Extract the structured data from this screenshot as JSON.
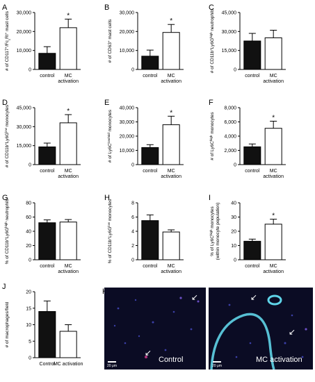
{
  "chart_data": [
    {
      "letter": "A",
      "type": "bar",
      "ylabel": [
        "# of CD117",
        "+",
        "/Fc",
        "ε",
        "RI",
        "+",
        " mast cells"
      ],
      "categories": [
        "control",
        "MC activation"
      ],
      "values": [
        8500,
        22000
      ],
      "errors": [
        3500,
        4500
      ],
      "ylim": [
        0,
        30000
      ],
      "yticks": [
        0,
        10000,
        20000,
        30000
      ],
      "yticklabels": [
        "0",
        "10,000",
        "20,000",
        "30,000"
      ],
      "significance": "*"
    },
    {
      "letter": "B",
      "type": "bar",
      "ylabel": [
        "# of CD63",
        "+",
        " mast cells"
      ],
      "categories": [
        "control",
        "MC activation"
      ],
      "values": [
        7000,
        19500
      ],
      "errors": [
        3200,
        4200
      ],
      "ylim": [
        0,
        30000
      ],
      "yticks": [
        0,
        10000,
        20000,
        30000
      ],
      "yticklabels": [
        "0",
        "10,000",
        "20,000",
        "30,000"
      ],
      "significance": "*"
    },
    {
      "letter": "C",
      "type": "bar",
      "ylabel": [
        "# of CD11b",
        "+",
        "Ly6G",
        "high",
        " neutrophils"
      ],
      "categories": [
        "control",
        "MC activation"
      ],
      "values": [
        22500,
        25000
      ],
      "errors": [
        6000,
        6000
      ],
      "ylim": [
        0,
        45000
      ],
      "yticks": [
        0,
        15000,
        30000,
        45000
      ],
      "yticklabels": [
        "0",
        "15,000",
        "30,000",
        "45,000"
      ],
      "significance": ""
    },
    {
      "letter": "D",
      "type": "bar",
      "ylabel": [
        "# of CD11b",
        "+",
        "Ly6G",
        "low",
        " monocytes"
      ],
      "categories": [
        "control",
        "MC activation"
      ],
      "values": [
        14000,
        33000
      ],
      "errors": [
        3000,
        6500
      ],
      "ylim": [
        0,
        45000
      ],
      "yticks": [
        0,
        15000,
        30000,
        45000
      ],
      "yticklabels": [
        "0",
        "15,000",
        "30,000",
        "45,000"
      ],
      "significance": "*"
    },
    {
      "letter": "E",
      "type": "bar",
      "ylabel": [
        "# of Ly6C",
        "low/mid",
        " monocytes"
      ],
      "categories": [
        "control",
        "MC activation"
      ],
      "values": [
        12000,
        28000
      ],
      "errors": [
        2000,
        6000
      ],
      "ylim": [
        0,
        40000
      ],
      "yticks": [
        0,
        10000,
        20000,
        30000,
        40000
      ],
      "yticklabels": [
        "0",
        "10,000",
        "20,000",
        "30,000",
        "40,000"
      ],
      "significance": "*"
    },
    {
      "letter": "F",
      "type": "bar",
      "ylabel": [
        "# of Ly6C",
        "high",
        " monocytes"
      ],
      "categories": [
        "control",
        "MC activation"
      ],
      "values": [
        2500,
        5100
      ],
      "errors": [
        400,
        1000
      ],
      "ylim": [
        0,
        8000
      ],
      "yticks": [
        0,
        2000,
        4000,
        6000,
        8000
      ],
      "yticklabels": [
        "0",
        "2,000",
        "4,000",
        "6,000",
        "8,000"
      ],
      "significance": "*"
    },
    {
      "letter": "G",
      "type": "bar",
      "ylabel": [
        "% of CD11b",
        "+",
        "Ly6G",
        "high",
        " neutrophils"
      ],
      "categories": [
        "control",
        "MC activation"
      ],
      "values": [
        52,
        53
      ],
      "errors": [
        4,
        3.5
      ],
      "ylim": [
        0,
        80
      ],
      "yticks": [
        0,
        20,
        40,
        60,
        80
      ],
      "yticklabels": [
        "0",
        "20",
        "40",
        "60",
        "80"
      ],
      "significance": ""
    },
    {
      "letter": "H",
      "type": "bar",
      "ylabel": [
        "% of CD11b",
        "+",
        "Ly6G",
        "low",
        " monocytes"
      ],
      "categories": [
        "control",
        "MC activation"
      ],
      "values": [
        5.5,
        3.9
      ],
      "errors": [
        0.8,
        0.3
      ],
      "ylim": [
        0,
        8
      ],
      "yticks": [
        0,
        2,
        4,
        6,
        8
      ],
      "yticklabels": [
        "0",
        "2",
        "4",
        "6",
        "8"
      ],
      "significance": ""
    },
    {
      "letter": "I",
      "type": "bar",
      "ylabel": [
        "% of Ly6C",
        "high",
        " monocytes"
      ],
      "ylabel2": "(within monocyte population)",
      "categories": [
        "control",
        "MC activation"
      ],
      "values": [
        13,
        25
      ],
      "errors": [
        1.5,
        3.5
      ],
      "ylim": [
        0,
        40
      ],
      "yticks": [
        0,
        10,
        20,
        30,
        40
      ],
      "yticklabels": [
        "0",
        "10",
        "20",
        "30",
        "40"
      ],
      "significance": "*"
    },
    {
      "letter": "J",
      "type": "bar",
      "ylabel": [
        "# of macrophages/field"
      ],
      "categories": [
        "Control",
        "MC activation"
      ],
      "values": [
        14,
        8
      ],
      "errors": [
        3.2,
        2
      ],
      "ylim": [
        0,
        20
      ],
      "yticks": [
        0,
        5,
        10,
        15,
        20
      ],
      "yticklabels": [
        "0",
        "5",
        "10",
        "15",
        "20"
      ],
      "significance": ""
    }
  ],
  "micrographs": {
    "letter": "K",
    "left_label": "Control",
    "right_label": "MC activation",
    "scale_label": "20 μm"
  },
  "colors": {
    "control_bar": "#111111",
    "mc_bar": "#ffffff",
    "micro_bg": "#0b0c24",
    "fiber": "#5fd4e8"
  }
}
